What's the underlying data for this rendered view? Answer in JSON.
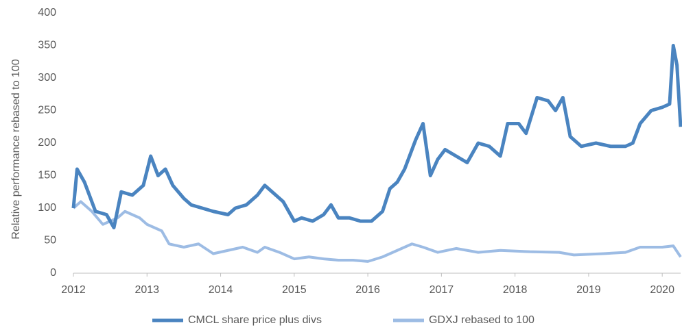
{
  "chart_data": {
    "type": "line",
    "y_label": "Relative performance rebased to 100",
    "xlim": [
      2012,
      2020.25
    ],
    "xticks": [
      2012,
      2013,
      2014,
      2015,
      2016,
      2017,
      2018,
      2019,
      2020
    ],
    "ylim": [
      0,
      400
    ],
    "yticks": [
      0,
      50,
      100,
      150,
      200,
      250,
      300,
      350,
      400
    ],
    "grid": false,
    "legend": "bottom",
    "series": [
      {
        "name": "CMCL share price plus divs",
        "color": "#4a84c0",
        "x": [
          2012,
          2012.05,
          2012.15,
          2012.3,
          2012.45,
          2012.55,
          2012.65,
          2012.8,
          2012.95,
          2013.05,
          2013.15,
          2013.25,
          2013.35,
          2013.5,
          2013.6,
          2013.75,
          2013.9,
          2014.1,
          2014.2,
          2014.35,
          2014.5,
          2014.6,
          2014.7,
          2014.85,
          2015,
          2015.1,
          2015.25,
          2015.4,
          2015.5,
          2015.6,
          2015.75,
          2015.9,
          2016.05,
          2016.2,
          2016.3,
          2016.4,
          2016.5,
          2016.65,
          2016.75,
          2016.85,
          2016.95,
          2017.05,
          2017.2,
          2017.35,
          2017.5,
          2017.65,
          2017.8,
          2017.9,
          2018.05,
          2018.15,
          2018.3,
          2018.45,
          2018.55,
          2018.65,
          2018.75,
          2018.9,
          2019.1,
          2019.3,
          2019.5,
          2019.6,
          2019.7,
          2019.85,
          2020,
          2020.1,
          2020.15,
          2020.2,
          2020.25
        ],
        "values": [
          100,
          160,
          140,
          95,
          90,
          70,
          125,
          120,
          135,
          180,
          150,
          160,
          135,
          115,
          105,
          100,
          95,
          90,
          100,
          105,
          120,
          135,
          125,
          110,
          80,
          85,
          80,
          90,
          105,
          85,
          85,
          80,
          80,
          95,
          130,
          140,
          160,
          205,
          230,
          150,
          175,
          190,
          180,
          170,
          200,
          195,
          180,
          230,
          230,
          215,
          270,
          265,
          250,
          270,
          210,
          195,
          200,
          195,
          195,
          200,
          230,
          250,
          255,
          260,
          350,
          320,
          225
        ]
      },
      {
        "name": "GDXJ rebased to 100",
        "color": "#9dbce4",
        "x": [
          2012,
          2012.1,
          2012.25,
          2012.4,
          2012.6,
          2012.7,
          2012.9,
          2013,
          2013.2,
          2013.3,
          2013.5,
          2013.7,
          2013.9,
          2014.1,
          2014.3,
          2014.5,
          2014.6,
          2014.8,
          2015,
          2015.2,
          2015.4,
          2015.6,
          2015.8,
          2016,
          2016.2,
          2016.4,
          2016.6,
          2016.75,
          2016.95,
          2017.2,
          2017.5,
          2017.8,
          2018.2,
          2018.6,
          2018.8,
          2019.2,
          2019.5,
          2019.7,
          2020,
          2020.15,
          2020.25
        ],
        "values": [
          100,
          110,
          95,
          75,
          85,
          95,
          85,
          75,
          65,
          45,
          40,
          45,
          30,
          35,
          40,
          32,
          40,
          32,
          22,
          25,
          22,
          20,
          20,
          18,
          25,
          35,
          45,
          40,
          32,
          38,
          32,
          35,
          33,
          32,
          28,
          30,
          32,
          40,
          40,
          42,
          25
        ]
      }
    ]
  }
}
